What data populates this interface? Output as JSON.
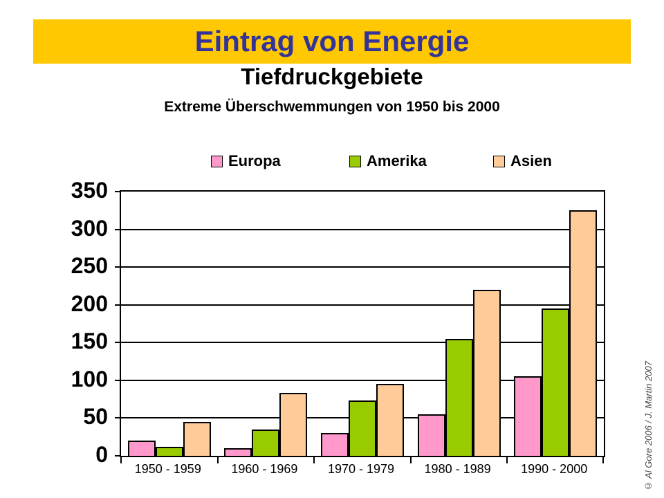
{
  "header": {
    "banner_title": "Eintrag von Energie",
    "subtitle": "Tiefdruckgebiete",
    "caption": "Extreme Überschwemmungen von 1950 bis 2000"
  },
  "colors": {
    "banner_bg": "#FFC800",
    "banner_text": "#333399",
    "axis": "#000000",
    "europa": "#FF99CC",
    "amerika": "#99CC00",
    "asien": "#FFCC99"
  },
  "chart_data": {
    "type": "bar",
    "title": "Tiefdruckgebiete",
    "subtitle": "Extreme Überschwemmungen von 1950 bis 2000",
    "categories": [
      "1950 - 1959",
      "1960 - 1969",
      "1970 - 1979",
      "1980 - 1989",
      "1990 - 2000"
    ],
    "series": [
      {
        "name": "Europa",
        "color": "#FF99CC",
        "values": [
          20,
          10,
          30,
          55,
          105
        ]
      },
      {
        "name": "Amerika",
        "color": "#99CC00",
        "values": [
          12,
          35,
          73,
          155,
          195
        ]
      },
      {
        "name": "Asien",
        "color": "#FFCC99",
        "values": [
          45,
          83,
          95,
          220,
          325
        ]
      }
    ],
    "ylim": [
      0,
      350
    ],
    "ytick_step": 50,
    "yticks": [
      0,
      50,
      100,
      150,
      200,
      250,
      300,
      350
    ],
    "grid": true,
    "legend_position": "top",
    "xlabel": "",
    "ylabel": ""
  },
  "footer": {
    "copyright": "© Al Gore 2006 / J. Martin 2007"
  }
}
